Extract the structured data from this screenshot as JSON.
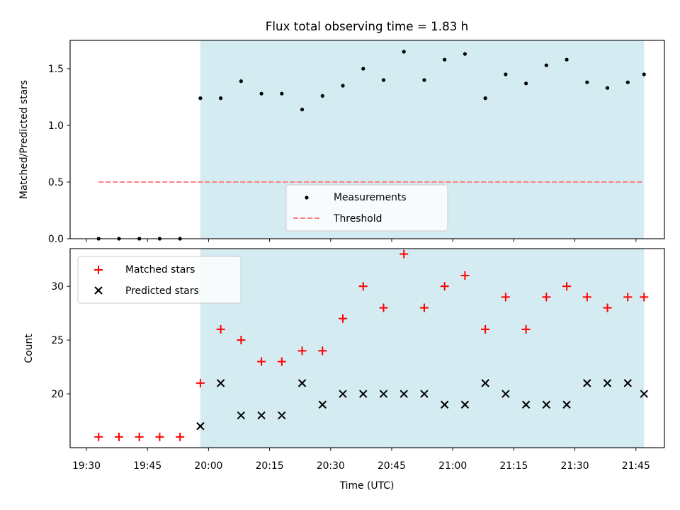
{
  "chart_data": [
    {
      "type": "scatter",
      "title": "Flux total observing time = 1.83 h",
      "xlabel": "",
      "ylabel": "Matched/Predicted stars",
      "xlim": [
        "19:26",
        "21:52"
      ],
      "ylim": [
        0,
        1.75
      ],
      "yticks": [
        {
          "value": 0.0,
          "label": "0.0"
        },
        {
          "value": 0.5,
          "label": "0.5"
        },
        {
          "value": 1.0,
          "label": "1.0"
        },
        {
          "value": 1.5,
          "label": "1.5"
        }
      ],
      "shaded_region": {
        "from": "19:58",
        "to": "21:47",
        "color": "#add8e6"
      },
      "x": [
        "19:33",
        "19:38",
        "19:43",
        "19:48",
        "19:53",
        "19:58",
        "20:03",
        "20:08",
        "20:13",
        "20:18",
        "20:23",
        "20:28",
        "20:33",
        "20:38",
        "20:43",
        "20:48",
        "20:53",
        "20:58",
        "21:03",
        "21:08",
        "21:13",
        "21:18",
        "21:23",
        "21:28",
        "21:33",
        "21:38",
        "21:43",
        "21:47"
      ],
      "series": [
        {
          "name": "Measurements",
          "marker": "dot",
          "color": "#000000",
          "values": [
            0,
            0,
            0,
            0,
            0,
            1.24,
            1.24,
            1.39,
            1.28,
            1.28,
            1.14,
            1.26,
            1.35,
            1.5,
            1.4,
            1.65,
            1.4,
            1.58,
            1.63,
            1.24,
            1.45,
            1.37,
            1.53,
            1.58,
            1.38,
            1.33,
            1.38,
            1.45
          ]
        },
        {
          "name": "Threshold",
          "style": "dashed-line",
          "color": "#ff7f7f",
          "x": [
            "19:33",
            "21:47"
          ],
          "values": [
            0.5,
            0.5
          ]
        }
      ],
      "legend": {
        "placement": "lower-center",
        "entries": [
          "Measurements",
          "Threshold"
        ]
      }
    },
    {
      "type": "scatter",
      "xlabel": "Time (UTC)",
      "ylabel": "Count",
      "xlim": [
        "19:26",
        "21:52"
      ],
      "ylim": [
        15,
        33.5
      ],
      "xticks": [
        "19:30",
        "19:45",
        "20:00",
        "20:15",
        "20:30",
        "20:45",
        "21:00",
        "21:15",
        "21:30",
        "21:45"
      ],
      "yticks": [
        {
          "value": 20,
          "label": "20"
        },
        {
          "value": 25,
          "label": "25"
        },
        {
          "value": 30,
          "label": "30"
        }
      ],
      "shaded_region": {
        "from": "19:58",
        "to": "21:47",
        "color": "#add8e6"
      },
      "x": [
        "19:33",
        "19:38",
        "19:43",
        "19:48",
        "19:53",
        "19:58",
        "20:03",
        "20:08",
        "20:13",
        "20:18",
        "20:23",
        "20:28",
        "20:33",
        "20:38",
        "20:43",
        "20:48",
        "20:53",
        "20:58",
        "21:03",
        "21:08",
        "21:13",
        "21:18",
        "21:23",
        "21:28",
        "21:33",
        "21:38",
        "21:43",
        "21:47"
      ],
      "series": [
        {
          "name": "Matched stars",
          "marker": "plus",
          "color": "#ff0000",
          "values": [
            16,
            16,
            16,
            16,
            16,
            21,
            26,
            25,
            23,
            23,
            24,
            24,
            27,
            30,
            28,
            33,
            28,
            30,
            31,
            26,
            29,
            26,
            29,
            30,
            29,
            28,
            29,
            29
          ]
        },
        {
          "name": "Predicted stars",
          "marker": "x",
          "color": "#000000",
          "values": [
            null,
            null,
            null,
            null,
            null,
            17,
            21,
            18,
            18,
            18,
            21,
            19,
            20,
            20,
            20,
            20,
            20,
            19,
            19,
            21,
            20,
            19,
            19,
            19,
            21,
            21,
            21,
            20
          ]
        }
      ],
      "legend": {
        "placement": "upper-left",
        "entries": [
          "Matched stars",
          "Predicted stars"
        ]
      }
    }
  ]
}
